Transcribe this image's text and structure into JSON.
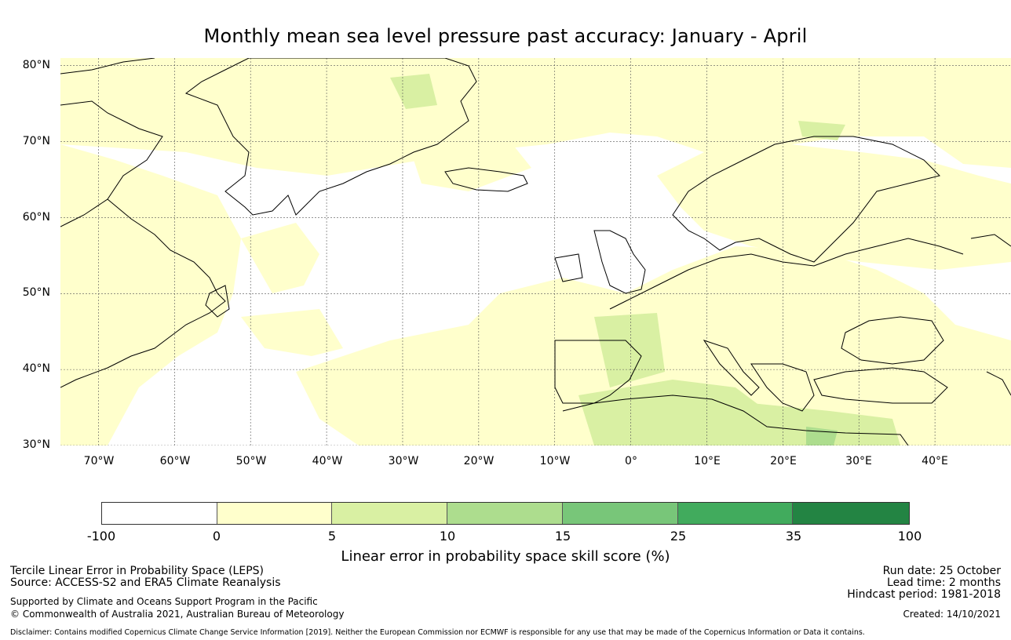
{
  "title": "Monthly mean sea level pressure past accuracy: January - April",
  "map": {
    "lat_labels": [
      "80°N",
      "70°N",
      "60°N",
      "50°N",
      "40°N",
      "30°N"
    ],
    "lon_labels": [
      "70°W",
      "60°W",
      "50°W",
      "40°W",
      "30°W",
      "20°W",
      "10°W",
      "0°",
      "10°E",
      "20°E",
      "30°E",
      "40°E"
    ],
    "lat_range": [
      30,
      81
    ],
    "lon_range": [
      -75,
      50
    ],
    "colors": {
      "skill_0_5": "#ffffcc",
      "skill_5_10": "#d9f0a3",
      "skill_10_15": "#addd8e",
      "coast": "#000000",
      "grid": "#555555"
    }
  },
  "colorbar": {
    "ticks": [
      "-100",
      "0",
      "5",
      "10",
      "15",
      "25",
      "35",
      "100"
    ],
    "segments": [
      "#ffffff",
      "#ffffcc",
      "#d9f0a3",
      "#addd8e",
      "#78c679",
      "#41ab5d",
      "#238443"
    ],
    "label": "Linear error in probability space skill score (%)"
  },
  "footer": {
    "method": "Tercile Linear Error in Probability Space (LEPS)",
    "source": "Source: ACCESS-S2 and ERA5 Climate Reanalysis",
    "support": "Supported by Climate and Oceans Support Program in the Pacific",
    "copyright": "© Commonwealth of Australia 2021, Australian Bureau of Meteorology",
    "disclaimer": "Disclaimer: Contains modified Copernicus Climate Change Service Information [2019]. Neither the European Commission nor ECMWF is responsible for any use that may be made of the Copernicus Information or Data it contains.",
    "run_date": "Run date: 25 October",
    "lead_time": "Lead time: 2 months",
    "hindcast": "Hindcast period: 1981-2018",
    "created": "Created: 14/10/2021"
  }
}
